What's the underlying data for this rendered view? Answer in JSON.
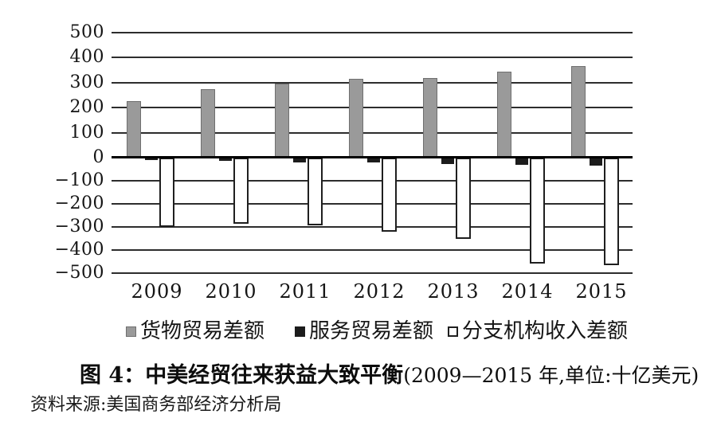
{
  "caption": {
    "figure_label": "图 4：",
    "title": "中美经贸往来获益大致平衡",
    "subtitle": "(2009—2015 年,单位:十亿美元)"
  },
  "source": {
    "text": "资料来源:美国商务部经济分析局"
  },
  "chart_data": {
    "type": "bar",
    "title": "中美经贸往来获益大致平衡",
    "subtitle": "2009—2015 年, 单位: 十亿美元",
    "unit": "十亿美元",
    "categories": [
      "2009",
      "2010",
      "2011",
      "2012",
      "2013",
      "2014",
      "2015"
    ],
    "series": [
      {
        "name": "货物贸易差额",
        "color": "#9a9a9a",
        "border": "#6f6f6f",
        "style": "gray",
        "values": [
          227,
          273,
          295,
          315,
          319,
          345,
          367
        ]
      },
      {
        "name": "服务贸易差额",
        "color": "#1c1c1c",
        "border": "#1c1c1c",
        "style": "black",
        "values": [
          -10,
          -15,
          -19,
          -22,
          -26,
          -30,
          -36
        ]
      },
      {
        "name": "分支机构收入差额",
        "color": "#ffffff",
        "border": "#1f1f1f",
        "style": "white",
        "values": [
          -300,
          -287,
          -293,
          -322,
          -351,
          -460,
          -466
        ]
      }
    ],
    "ylim": [
      -500,
      500
    ],
    "ytick_interval": 100,
    "yticks": [
      "500",
      "400",
      "300",
      "200",
      "100",
      "0",
      "−100",
      "−200",
      "−300",
      "−400",
      "−500"
    ],
    "grid": true,
    "legend_position": "bottom",
    "source": "资料来源:美国商务部经济分析局"
  }
}
